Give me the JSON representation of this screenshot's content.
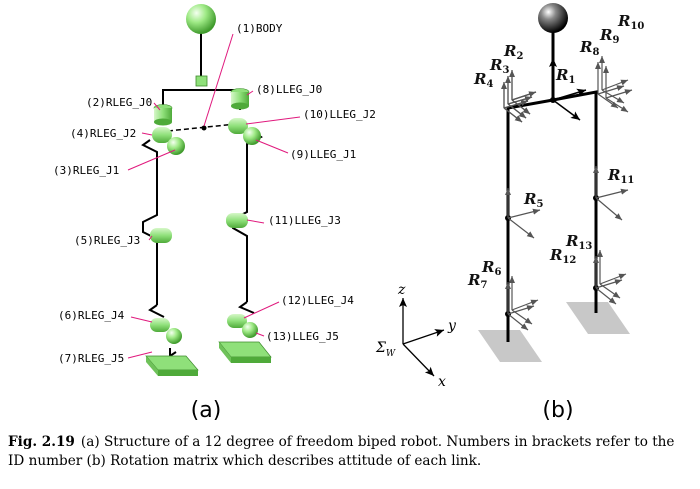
{
  "panel_a": {
    "label": "(a)",
    "joints": {
      "body": "(1)BODY",
      "rleg_j0": "(2)RLEG_J0",
      "rleg_j1": "(3)RLEG_J1",
      "rleg_j2": "(4)RLEG_J2",
      "rleg_j3": "(5)RLEG_J3",
      "rleg_j4": "(6)RLEG_J4",
      "rleg_j5": "(7)RLEG_J5",
      "lleg_j0": "(8)LLEG_J0",
      "lleg_j1": "(9)LLEG_J1",
      "lleg_j2": "(10)LLEG_J2",
      "lleg_j3": "(11)LLEG_J3",
      "lleg_j4": "(12)LLEG_J4",
      "lleg_j5": "(13)LLEG_J5"
    }
  },
  "panel_b": {
    "label": "(b)",
    "frame_symbol": "R",
    "frames": [
      "1",
      "2",
      "3",
      "4",
      "5",
      "6",
      "7",
      "8",
      "9",
      "10",
      "11",
      "12",
      "13"
    ],
    "world": {
      "symbol": "Σ",
      "subscript": "W",
      "x": "x",
      "y": "y",
      "z": "z"
    }
  },
  "caption": {
    "fig_number": "Fig. 2.19",
    "text": "(a) Structure of a 12 degree of freedom biped robot. Numbers in brackets refer to the ID number (b) Rotation matrix which describes attitude of each link."
  },
  "colors": {
    "joint_green": "#8fe07a",
    "leader_magenta": "#e0197d",
    "foot_gray": "#c8c8c8"
  }
}
